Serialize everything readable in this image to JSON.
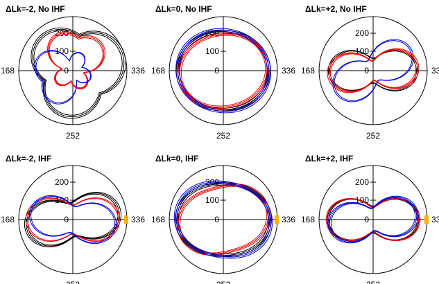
{
  "chart_data": {
    "type": "polar-line",
    "angle_tick_labels": {
      "left": "168",
      "right": "336",
      "bottom": "252"
    },
    "radial_tick_labels": [
      "200",
      "100",
      "0"
    ],
    "colors": {
      "black": "#000000",
      "red": "#ee0000",
      "blue": "#0000dd",
      "marker": "#ffb000"
    },
    "panels": [
      {
        "title": "ΔLk=-2, No IHF",
        "series": [
          {
            "color": "black",
            "traces": 3,
            "shape": "clover",
            "amplitude": 0.3,
            "orientation": 20,
            "base": 0.62
          },
          {
            "color": "red",
            "traces": 3,
            "shape": "lobe",
            "amplitude": 0.42,
            "orientation": 80,
            "base": 0.55
          },
          {
            "color": "blue",
            "traces": 2,
            "shape": "lobe",
            "amplitude": 0.42,
            "orientation": 200,
            "base": 0.52
          }
        ]
      },
      {
        "title": "ΔLk=0, No IHF",
        "series": [
          {
            "color": "black",
            "traces": 3,
            "shape": "ellipse",
            "amplitude": 0.06,
            "orientation": 0,
            "base": 0.78
          },
          {
            "color": "red",
            "traces": 3,
            "shape": "ellipse",
            "amplitude": 0.07,
            "orientation": 10,
            "base": 0.74
          },
          {
            "color": "blue",
            "traces": 3,
            "shape": "ellipse",
            "amplitude": 0.05,
            "orientation": 350,
            "base": 0.8
          }
        ]
      },
      {
        "title": "ΔLk=+2, No IHF",
        "series": [
          {
            "color": "black",
            "traces": 2,
            "shape": "peanut",
            "amplitude": 0.3,
            "orientation": 0,
            "base": 0.58
          },
          {
            "color": "blue",
            "traces": 2,
            "shape": "peanut",
            "amplitude": 0.3,
            "orientation": 30,
            "base": 0.56
          },
          {
            "color": "red",
            "traces": 3,
            "shape": "peanut",
            "amplitude": 0.32,
            "orientation": 5,
            "base": 0.55
          }
        ]
      },
      {
        "title": "ΔLk=-2, IHF",
        "series": [
          {
            "color": "black",
            "traces": 3,
            "shape": "peanut",
            "amplitude": 0.28,
            "orientation": 10,
            "base": 0.64
          },
          {
            "color": "red",
            "traces": 2,
            "shape": "peanut",
            "amplitude": 0.3,
            "orientation": 0,
            "base": 0.62
          },
          {
            "color": "blue",
            "traces": 2,
            "shape": "peanut",
            "amplitude": 0.28,
            "orientation": 350,
            "base": 0.58
          }
        ],
        "marker": true
      },
      {
        "title": "ΔLk=0, IHF",
        "series": [
          {
            "color": "black",
            "traces": 3,
            "shape": "ellipse",
            "amplitude": 0.1,
            "orientation": 0,
            "base": 0.76
          },
          {
            "color": "red",
            "traces": 3,
            "shape": "ellipse",
            "amplitude": 0.12,
            "orientation": 15,
            "base": 0.72
          },
          {
            "color": "blue",
            "traces": 3,
            "shape": "ellipse",
            "amplitude": 0.1,
            "orientation": 350,
            "base": 0.78
          }
        ],
        "marker": true
      },
      {
        "title": "ΔLk=+2, IHF",
        "series": [
          {
            "color": "black",
            "traces": 2,
            "shape": "peanut",
            "amplitude": 0.3,
            "orientation": 0,
            "base": 0.6
          },
          {
            "color": "red",
            "traces": 2,
            "shape": "peanut",
            "amplitude": 0.32,
            "orientation": 0,
            "base": 0.6
          },
          {
            "color": "blue",
            "traces": 3,
            "shape": "peanut",
            "amplitude": 0.3,
            "orientation": 8,
            "base": 0.56
          }
        ],
        "marker": true
      }
    ]
  }
}
